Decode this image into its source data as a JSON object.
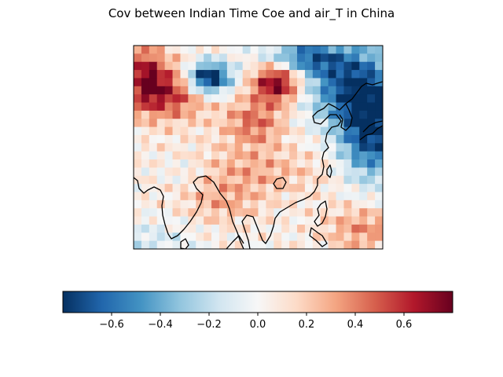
{
  "title": "Cov between Indian Time Coe and air_T in China",
  "map": {
    "type": "heatmap",
    "grid_cols": 32,
    "grid_rows": 25,
    "colormap": "RdBu_r",
    "value_range": [
      -0.8,
      0.8
    ],
    "coastlines": true,
    "regions": [
      {
        "name": "northwest-warm-band",
        "value": 0.6
      },
      {
        "name": "tibetan-cool-pocket",
        "value": -0.55
      },
      {
        "name": "inner-mongolia-warm-core",
        "value": 0.7
      },
      {
        "name": "northeast-cool-region",
        "value": -0.6
      },
      {
        "name": "east-coast-cool-region",
        "value": -0.7
      },
      {
        "name": "south-china-warm-band",
        "value": 0.25
      },
      {
        "name": "indian-subcontinent-neutral",
        "value": 0.05
      },
      {
        "name": "southwest-cool-corner",
        "value": -0.15
      },
      {
        "name": "south-china-sea-warm",
        "value": 0.35
      }
    ]
  },
  "colorbar": {
    "ticks": [
      "−0.6",
      "−0.4",
      "−0.2",
      "0.0",
      "0.2",
      "0.4",
      "0.6"
    ],
    "tick_values": [
      -0.6,
      -0.4,
      -0.2,
      0.0,
      0.2,
      0.4,
      0.6
    ],
    "range": [
      -0.8,
      0.8
    ]
  }
}
